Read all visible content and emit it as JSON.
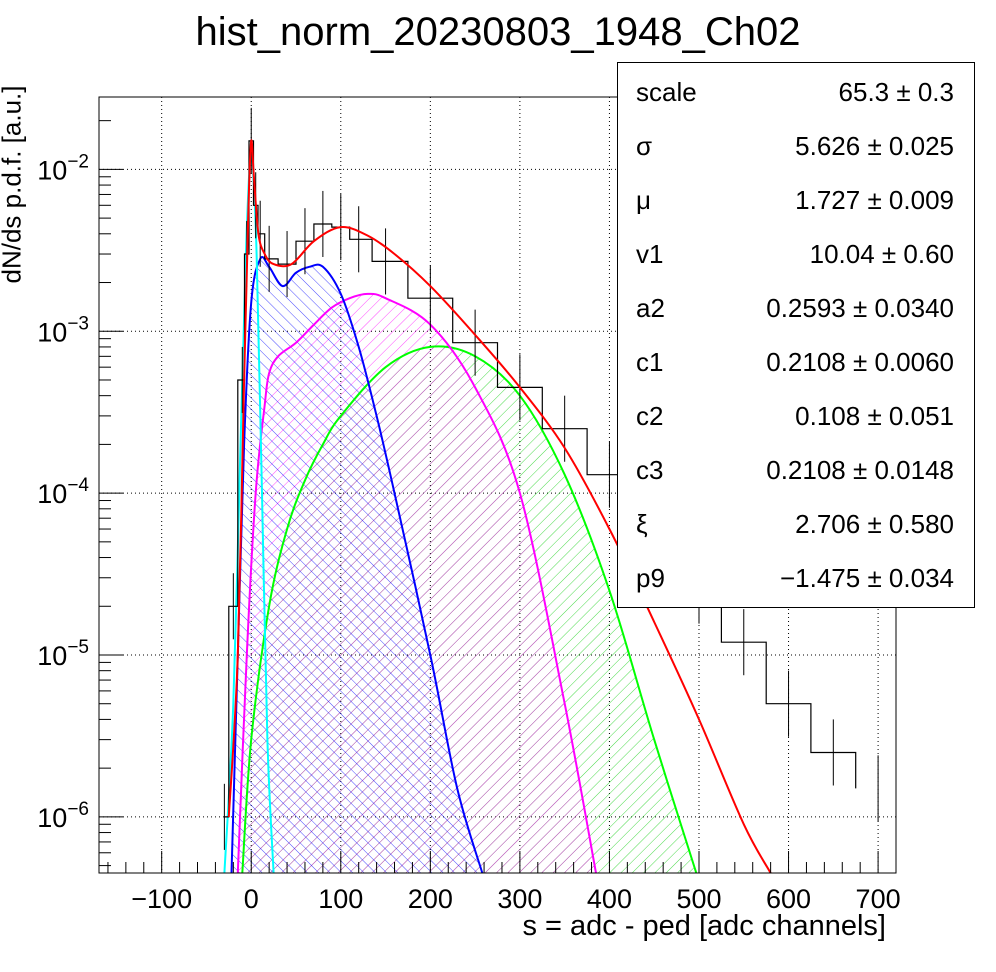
{
  "title": "hist_norm_20230803_1948_Ch02",
  "chart_data": {
    "type": "line",
    "title": "hist_norm_20230803_1948_Ch02",
    "xlabel": "s = adc - ped [adc channels]",
    "ylabel": "dN/ds p.d.f. [a.u.]",
    "xlim": [
      -170,
      720
    ],
    "ylim": [
      4.5e-07,
      0.028
    ],
    "yscale": "log",
    "grid": true,
    "x_ticks": [
      "−100",
      "0",
      "100",
      "200",
      "300",
      "400",
      "500",
      "600",
      "700"
    ],
    "x_tick_values": [
      -100,
      0,
      100,
      200,
      300,
      400,
      500,
      600,
      700
    ],
    "y_tick_values": [
      1e-06,
      1e-05,
      0.0001,
      0.001,
      0.01
    ],
    "series": [
      {
        "role": "data histogram",
        "color": "#000000",
        "x": [
          -30,
          -20,
          -10,
          -5,
          0,
          5,
          10,
          20,
          40,
          60,
          80,
          100,
          120,
          150,
          200,
          250,
          300,
          350,
          400,
          450,
          500,
          550,
          600,
          650,
          700
        ],
        "y": [
          1e-06,
          2e-05,
          0.0005,
          0.003,
          0.015,
          0.006,
          0.004,
          0.0028,
          0.0026,
          0.0036,
          0.0046,
          0.0044,
          0.0037,
          0.0027,
          0.0016,
          0.00085,
          0.00045,
          0.00025,
          0.00013,
          6e-05,
          2.5e-05,
          1.2e-05,
          5e-06,
          2.5e-06,
          1.5e-06
        ]
      },
      {
        "role": "total fit",
        "color": "#ff0000",
        "x": [
          -25,
          -15,
          -8,
          -3,
          0,
          3,
          8,
          15,
          25,
          45,
          70,
          100,
          130,
          160,
          200,
          250,
          300,
          350,
          400,
          450,
          500,
          550,
          580
        ],
        "y": [
          1e-06,
          1e-05,
          0.0005,
          0.006,
          0.015,
          0.009,
          0.004,
          0.003,
          0.0026,
          0.0026,
          0.0036,
          0.0044,
          0.0039,
          0.003,
          0.0019,
          0.00095,
          0.00045,
          0.00019,
          6e-05,
          1.6e-05,
          4e-06,
          9e-07,
          4.5e-07
        ]
      },
      {
        "role": "pedestal component",
        "color": "#00ffff",
        "x": [
          -30,
          -20,
          -12,
          -6,
          -2,
          0,
          2,
          6,
          12,
          18,
          25
        ],
        "y": [
          4.5e-07,
          5e-06,
          0.0002,
          0.003,
          0.01,
          0.013,
          0.01,
          0.003,
          0.0001,
          3e-06,
          4.5e-07
        ]
      },
      {
        "role": "1 p.e. component",
        "color": "#0000ff",
        "x": [
          -22,
          -15,
          -8,
          0,
          10,
          20,
          35,
          50,
          65,
          80,
          100,
          120,
          140,
          160,
          200,
          230,
          258
        ],
        "y": [
          4.5e-07,
          1e-05,
          0.0002,
          0.0015,
          0.0028,
          0.0025,
          0.0019,
          0.0023,
          0.0025,
          0.0025,
          0.0017,
          0.0008,
          0.0003,
          0.0001,
          1e-05,
          1.5e-06,
          4.5e-07
        ]
      },
      {
        "role": "2 p.e. component",
        "color": "#ff00ff",
        "x": [
          -15,
          -5,
          5,
          15,
          20,
          30,
          50,
          70,
          90,
          110,
          130,
          150,
          200,
          250,
          300,
          350,
          385
        ],
        "y": [
          4.5e-07,
          1e-05,
          0.0001,
          0.00035,
          0.00055,
          0.0007,
          0.00085,
          0.0011,
          0.0014,
          0.0016,
          0.0017,
          0.0016,
          0.0011,
          0.00045,
          0.0001,
          5e-06,
          4.5e-07
        ]
      },
      {
        "role": "3 p.e. component",
        "color": "#00ff00",
        "x": [
          -10,
          0,
          20,
          40,
          60,
          80,
          100,
          150,
          200,
          250,
          300,
          350,
          400,
          450,
          497
        ],
        "y": [
          4.5e-07,
          3e-06,
          2e-05,
          6e-05,
          0.00012,
          0.0002,
          0.0003,
          0.0006,
          0.0008,
          0.0007,
          0.0004,
          0.00013,
          2.5e-05,
          3e-06,
          4.5e-07
        ]
      }
    ]
  },
  "stats": [
    {
      "name": "scale",
      "value": "65.3 ± 0.3"
    },
    {
      "name": "σ",
      "value": "5.626 ± 0.025"
    },
    {
      "name": "μ",
      "value": "1.727 ± 0.009"
    },
    {
      "name": "v1",
      "value": "10.04 ± 0.60"
    },
    {
      "name": "a2",
      "value": "0.2593 ± 0.0340"
    },
    {
      "name": "c1",
      "value": "0.2108 ± 0.0060"
    },
    {
      "name": "c2",
      "value": "0.108 ± 0.051"
    },
    {
      "name": "c3",
      "value": "0.2108 ± 0.0148"
    },
    {
      "name": "ξ",
      "value": "2.706 ± 0.580"
    },
    {
      "name": "p9",
      "value": "−1.475 ± 0.034"
    }
  ]
}
